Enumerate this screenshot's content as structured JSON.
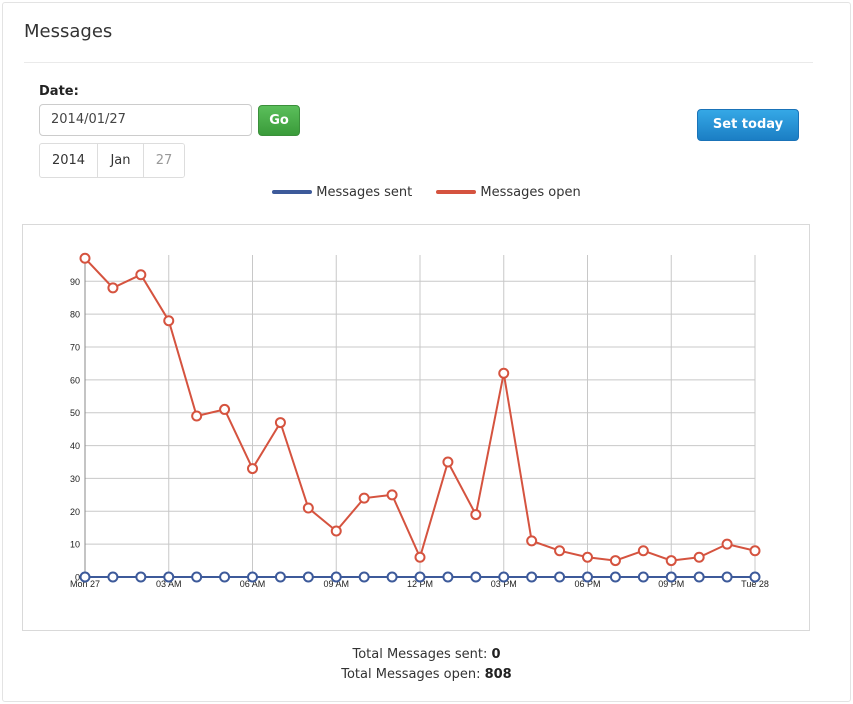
{
  "panel": {
    "title": "Messages"
  },
  "date_form": {
    "label": "Date:",
    "value": "2014/01/27",
    "go_label": "Go",
    "set_today_label": "Set today",
    "picker": {
      "year": "2014",
      "month": "Jan",
      "day": "27"
    }
  },
  "legend": [
    {
      "name": "Messages sent",
      "color": "#3d5a9a"
    },
    {
      "name": "Messages open",
      "color": "#d5533f"
    }
  ],
  "chart_data": {
    "type": "line",
    "x_tick_labels": [
      "Mon 27",
      "03 AM",
      "06 AM",
      "09 AM",
      "12 PM",
      "03 PM",
      "06 PM",
      "09 PM",
      "Tue 28"
    ],
    "x_hours": [
      0,
      1,
      2,
      3,
      4,
      5,
      6,
      7,
      8,
      9,
      10,
      11,
      12,
      13,
      14,
      15,
      16,
      17,
      18,
      19,
      20,
      21,
      22,
      23,
      24
    ],
    "ylim": [
      0,
      98
    ],
    "y_ticks": [
      0,
      10,
      20,
      30,
      40,
      50,
      60,
      70,
      80,
      90
    ],
    "grid": true,
    "series": [
      {
        "name": "Messages sent",
        "color": "#3d5a9a",
        "values": [
          0,
          0,
          0,
          0,
          0,
          0,
          0,
          0,
          0,
          0,
          0,
          0,
          0,
          0,
          0,
          0,
          0,
          0,
          0,
          0,
          0,
          0,
          0,
          0,
          0
        ]
      },
      {
        "name": "Messages open",
        "color": "#d5533f",
        "values": [
          97,
          88,
          92,
          78,
          49,
          51,
          33,
          47,
          21,
          14,
          24,
          25,
          6,
          35,
          19,
          62,
          11,
          8,
          6,
          5,
          8,
          5,
          6,
          10,
          8
        ]
      }
    ]
  },
  "totals": {
    "sent_label": "Total Messages sent:",
    "sent_value": "0",
    "open_label": "Total Messages open:",
    "open_value": "808"
  }
}
